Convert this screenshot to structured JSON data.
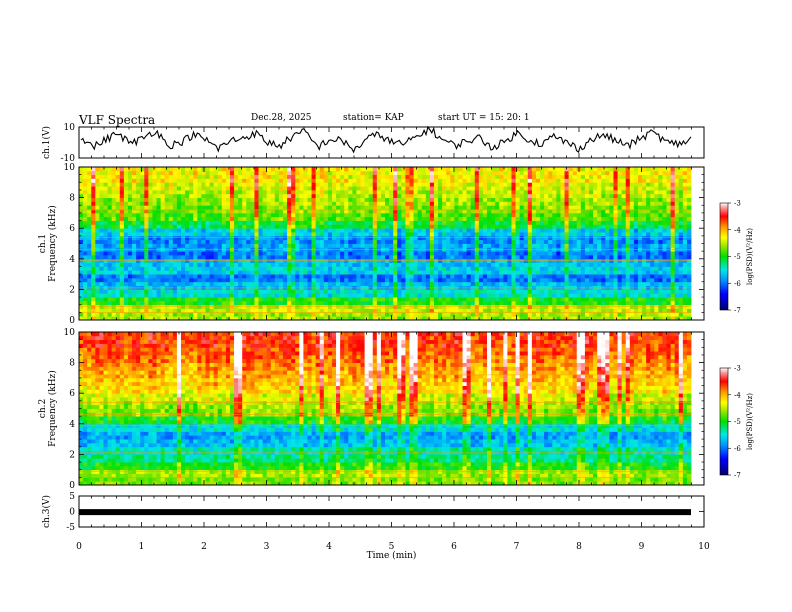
{
  "header": {
    "title": "VLF Spectra",
    "date": "Dec.28, 2025",
    "station": "station= KAP",
    "start": "start  UT  =   15: 20: 1"
  },
  "colors": {
    "spectrum": [
      "#00006e",
      "#0000ff",
      "#0090ff",
      "#00e6e6",
      "#00e000",
      "#9ee600",
      "#ffff00",
      "#ff9900",
      "#ff0000",
      "#ff8c8c",
      "#ffffff"
    ]
  },
  "chart_data": [
    {
      "id": "ch1-waveform",
      "type": "line",
      "ylabel": "ch.1(V)",
      "ylim": [
        -10,
        10
      ],
      "yticks": [
        "10",
        "-10"
      ],
      "xlim": [
        0,
        10
      ],
      "series": [
        {
          "name": "ch.1",
          "values": [
            4,
            -3,
            2,
            6,
            -1,
            3,
            8,
            -2,
            0,
            5,
            2,
            -4,
            1,
            3,
            6,
            0,
            -2,
            4,
            7,
            -3,
            2,
            1,
            -5,
            3,
            5,
            0,
            -1,
            4,
            9,
            2,
            -2,
            1,
            3,
            -3,
            0,
            6,
            2,
            -1,
            4,
            0,
            -4,
            2,
            5,
            1,
            -2,
            3,
            7,
            0,
            -1,
            2
          ]
        }
      ]
    },
    {
      "id": "ch1-spectrogram",
      "type": "heatmap",
      "ylabel": "ch.1",
      "ylabel2": "Frequency (kHz)",
      "ylim": [
        0,
        10
      ],
      "yticks": [
        "0",
        "2",
        "4",
        "6",
        "8",
        "10"
      ],
      "xlim": [
        0,
        10
      ],
      "level_by_khz": [
        -4.6,
        -4.5,
        -5.0,
        -5.5,
        -5.7,
        -6.0,
        -5.6,
        -5.7,
        -6.0,
        -5.8,
        -5.9,
        -5.6,
        -5.1,
        -4.8,
        -4.7,
        -4.6,
        -4.5,
        -4.4,
        -4.3,
        -4.3
      ],
      "colorbar": {
        "label": "log(PSD)(V²/Hz)",
        "range": [
          -7,
          -3
        ],
        "ticks": [
          "-3",
          "-4",
          "-5",
          "-6",
          "-7"
        ]
      }
    },
    {
      "id": "ch2-spectrogram",
      "type": "heatmap",
      "ylabel": "ch.2",
      "ylabel2": "Frequency (kHz)",
      "ylim": [
        0,
        10
      ],
      "yticks": [
        "0",
        "2",
        "4",
        "6",
        "8",
        "10"
      ],
      "xlim": [
        0,
        10
      ],
      "level_by_khz": [
        -4.7,
        -4.6,
        -5.0,
        -5.3,
        -5.4,
        -5.7,
        -5.8,
        -5.5,
        -5.0,
        -4.7,
        -4.6,
        -4.4,
        -4.2,
        -4.1,
        -4.0,
        -3.9,
        -3.8,
        -3.7,
        -3.6,
        -3.6
      ],
      "colorbar": {
        "label": "log(PSD)(V²/Hz)",
        "range": [
          -7,
          -3
        ],
        "ticks": [
          "-3",
          "-4",
          "-5",
          "-6",
          "-7"
        ]
      }
    },
    {
      "id": "ch3-waveform",
      "type": "line",
      "ylabel": "ch.3(V)",
      "ylim": [
        -5,
        5
      ],
      "yticks": [
        "5",
        "0",
        "-5"
      ],
      "xlim": [
        0,
        10
      ],
      "series": [
        {
          "name": "ch.3",
          "values": [
            -0.2,
            -0.2
          ]
        }
      ]
    }
  ],
  "xaxis": {
    "label": "Time (min)",
    "ticks": [
      "0",
      "1",
      "2",
      "3",
      "4",
      "5",
      "6",
      "7",
      "8",
      "9",
      "10"
    ]
  }
}
